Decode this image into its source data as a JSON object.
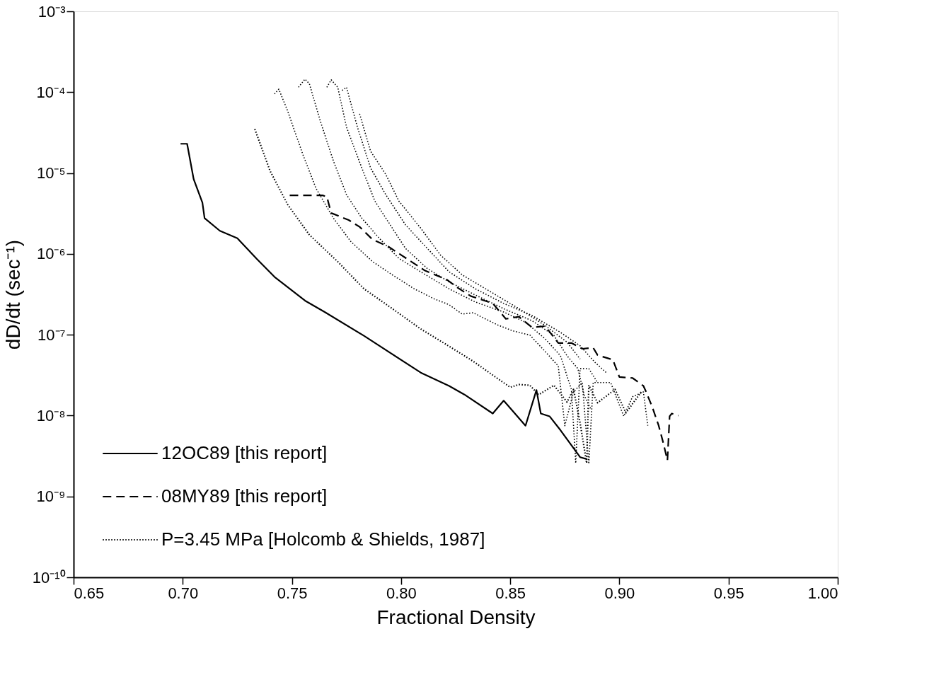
{
  "chart_data": {
    "type": "line",
    "xlabel": "Fractional Density",
    "ylabel": "dD/dt (sec⁻¹)",
    "log": "y",
    "grid": false,
    "legend": "bottom left",
    "xlim": [
      0.65,
      1.0
    ],
    "xticks": [
      {
        "value": 0.65,
        "label": "0.65"
      },
      {
        "value": 0.7,
        "label": "0.70"
      },
      {
        "value": 0.75,
        "label": "0.75"
      },
      {
        "value": 0.8,
        "label": "0.80"
      },
      {
        "value": 0.85,
        "label": "0.85"
      },
      {
        "value": 0.9,
        "label": "0.90"
      },
      {
        "value": 0.95,
        "label": "0.95"
      },
      {
        "value": 1.0,
        "label": "1.00"
      }
    ],
    "ylim": [
      1e-10,
      0.001
    ],
    "yticks": [
      {
        "value": 1e-10,
        "label": "10⁻¹⁰"
      },
      {
        "value": 1e-09,
        "label": "10⁻⁹"
      },
      {
        "value": 1e-08,
        "label": "10⁻⁸"
      },
      {
        "value": 1e-07,
        "label": "10⁻⁷"
      },
      {
        "value": 1e-06,
        "label": "10⁻⁶"
      },
      {
        "value": 1e-05,
        "label": "10⁻⁵"
      },
      {
        "value": 0.0001,
        "label": "10⁻⁴"
      },
      {
        "value": 0.001,
        "label": "10⁻³"
      }
    ],
    "series": [
      {
        "name": "12OC89 [this report]",
        "color": "#000000",
        "line_style": "solid",
        "x": [
          0.699,
          0.702,
          0.705,
          0.709,
          0.71,
          0.717,
          0.725,
          0.734,
          0.742,
          0.756,
          0.765,
          0.783,
          0.809,
          0.822,
          0.829,
          0.842,
          0.847,
          0.857,
          0.862,
          0.864,
          0.868,
          0.873,
          0.882,
          0.885
        ],
        "values": [
          2.3e-05,
          2.3e-05,
          8.4e-06,
          4.3e-06,
          2.77e-06,
          1.93e-06,
          1.56e-06,
          8.6e-07,
          5.2e-07,
          2.64e-07,
          1.91e-07,
          9.7e-08,
          3.4e-08,
          2.33e-08,
          1.82e-08,
          1.06e-08,
          1.53e-08,
          7.5e-09,
          2.07e-08,
          1.06e-08,
          9.8e-09,
          6.6e-09,
          3.06e-09,
          2.9e-09
        ]
      },
      {
        "name": "08MY89 [this report]",
        "color": "#000000",
        "line_style": "dashed",
        "x": [
          0.749,
          0.764,
          0.766,
          0.768,
          0.776,
          0.781,
          0.787,
          0.794,
          0.8,
          0.811,
          0.821,
          0.826,
          0.832,
          0.842,
          0.848,
          0.854,
          0.86,
          0.866,
          0.872,
          0.878,
          0.883,
          0.888,
          0.89,
          0.897,
          0.9,
          0.906,
          0.911,
          0.912,
          0.915,
          0.918,
          0.92,
          0.922,
          0.923,
          0.924,
          0.927
        ],
        "values": [
          5.3e-06,
          5.3e-06,
          5.1e-06,
          3.2e-06,
          2.62e-06,
          2.16e-06,
          1.5e-06,
          1.24e-06,
          9.7e-07,
          6.2e-07,
          4.8e-07,
          3.8e-07,
          3e-07,
          2.44e-07,
          1.57e-07,
          1.67e-07,
          1.23e-07,
          1.28e-07,
          7.9e-08,
          7.9e-08,
          6.7e-08,
          6.9e-08,
          5.6e-08,
          4.9e-08,
          3e-08,
          2.92e-08,
          2.33e-08,
          2.03e-08,
          1.29e-08,
          7.5e-09,
          4.7e-09,
          2.8e-09,
          9.8e-09,
          1.06e-08,
          1e-08
        ]
      },
      {
        "name": "P=3.45 MPa [Holcomb & Shields, 1987]",
        "color": "#000000",
        "line_style": "dotted",
        "x": [
          0.733,
          0.74,
          0.748,
          0.758,
          0.771,
          0.783,
          0.796,
          0.809,
          0.822,
          0.833,
          0.844,
          0.85,
          0.854,
          0.859,
          0.863,
          0.87,
          0.876,
          0.879,
          0.882,
          0.885,
          0.886,
          0.89,
          0.898,
          0.903,
          0.91
        ],
        "values": [
          3.5e-05,
          1.06e-05,
          4.1e-06,
          1.72e-06,
          8e-07,
          3.7e-07,
          2.1e-07,
          1.18e-07,
          7.2e-08,
          4.7e-08,
          2.9e-08,
          2.24e-08,
          2.42e-08,
          2.37e-08,
          1.81e-08,
          2.37e-08,
          1.47e-08,
          2.11e-08,
          8.1e-09,
          2.58e-09,
          2.37e-08,
          1.44e-08,
          2.11e-08,
          1.08e-08,
          1.96e-08
        ]
      },
      {
        "color": "#000000",
        "line_style": "dotted",
        "x": [
          0.742,
          0.744,
          0.748,
          0.755,
          0.761,
          0.769,
          0.777,
          0.787,
          0.796,
          0.806,
          0.815,
          0.822,
          0.828,
          0.833,
          0.844,
          0.851,
          0.859,
          0.867,
          0.872,
          0.875,
          0.879,
          0.883,
          0.886,
          0.888,
          0.896,
          0.902,
          0.906,
          0.911,
          0.913
        ],
        "values": [
          9.5e-05,
          0.000109,
          5.9e-05,
          1.7e-05,
          6.5e-06,
          2.77e-06,
          1.42e-06,
          8e-07,
          5.5e-07,
          3.7e-07,
          2.79e-07,
          2.35e-07,
          1.8e-07,
          1.87e-07,
          1.33e-07,
          1.12e-07,
          9.9e-08,
          5.8e-08,
          4.1e-08,
          7.5e-09,
          1.96e-08,
          2.56e-08,
          2.53e-09,
          2.56e-08,
          2.56e-08,
          9.8e-09,
          1.71e-08,
          1.96e-08,
          7.5e-09
        ]
      },
      {
        "color": "#000000",
        "line_style": "dotted",
        "x": [
          0.753,
          0.756,
          0.758,
          0.763,
          0.769,
          0.775,
          0.782,
          0.79,
          0.799,
          0.809,
          0.822,
          0.834,
          0.847,
          0.857,
          0.866,
          0.873,
          0.878,
          0.88,
          0.882,
          0.886,
          0.89
        ],
        "values": [
          0.000115,
          0.000145,
          0.000127,
          4.4e-05,
          1.41e-05,
          5.4e-06,
          2.77e-06,
          1.56e-06,
          8.8e-07,
          6e-07,
          3.7e-07,
          2.54e-07,
          1.91e-07,
          1.43e-07,
          8.9e-08,
          5.5e-08,
          2.11e-08,
          2.58e-09,
          3.8e-08,
          3.8e-08,
          2.56e-08
        ]
      },
      {
        "color": "#000000",
        "line_style": "dotted",
        "x": [
          0.766,
          0.768,
          0.771,
          0.775,
          0.782,
          0.788,
          0.795,
          0.802,
          0.812,
          0.822,
          0.834,
          0.847,
          0.86,
          0.87,
          0.876,
          0.881,
          0.884,
          0.887
        ],
        "values": [
          0.000115,
          0.000142,
          0.000115,
          3.7e-05,
          1.16e-05,
          4.5e-06,
          2.29e-06,
          1.17e-06,
          6.6e-07,
          4.5e-07,
          3.1e-07,
          2.1e-07,
          1.49e-07,
          9.8e-08,
          5.5e-08,
          3.8e-08,
          1.75e-08,
          1.19e-08
        ]
      },
      {
        "color": "#000000",
        "line_style": "dotted",
        "x": [
          0.773,
          0.775,
          0.78,
          0.786,
          0.793,
          0.802,
          0.812,
          0.822,
          0.834,
          0.847,
          0.86,
          0.873,
          0.882,
          0.889,
          0.894
        ],
        "values": [
          0.000105,
          0.000115,
          3.7e-05,
          1.16e-05,
          5.4e-06,
          2.29e-06,
          1.17e-06,
          6e-07,
          3.7e-07,
          2.44e-07,
          1.73e-07,
          1.07e-07,
          7.3e-08,
          4.5e-08,
          3.4e-08
        ]
      },
      {
        "color": "#000000",
        "line_style": "dotted",
        "x": [
          0.781,
          0.786,
          0.793,
          0.799,
          0.809,
          0.818,
          0.828,
          0.841,
          0.854,
          0.866,
          0.876,
          0.882
        ],
        "values": [
          5.4e-05,
          1.87e-05,
          9.6e-06,
          4.5e-06,
          2.08e-06,
          9.7e-07,
          5.5e-07,
          3.4e-07,
          2.1e-07,
          1.3e-07,
          8.1e-08,
          5e-08
        ]
      }
    ]
  }
}
